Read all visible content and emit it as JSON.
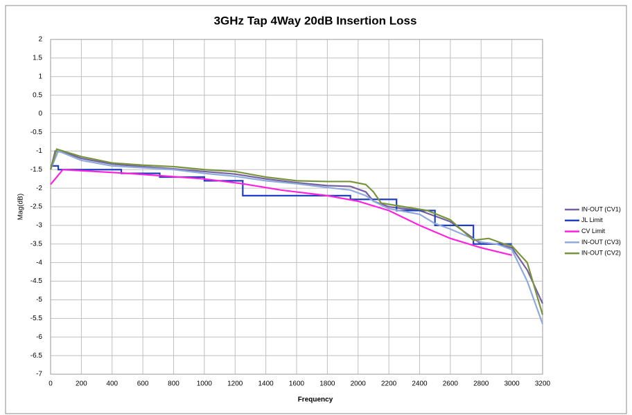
{
  "chart_data": {
    "type": "line",
    "title": "3GHz Tap 4Way 20dB Insertion Loss",
    "x_label": "Frequency",
    "y_label": "Mag(dB)",
    "xlim": [
      0,
      3200
    ],
    "xticks": [
      0,
      200,
      400,
      600,
      800,
      1000,
      1200,
      1400,
      1600,
      1800,
      2000,
      2200,
      2400,
      2600,
      2800,
      3000,
      3200
    ],
    "ylim": [
      -7,
      2
    ],
    "yticks": [
      2,
      1.5,
      1,
      0.5,
      0,
      -0.5,
      -1,
      -1.5,
      -2,
      -2.5,
      -3,
      -3.5,
      -4,
      -4.5,
      -5,
      -5.5,
      -6,
      -6.5,
      -7
    ],
    "grid": true,
    "legend": "right",
    "series": [
      {
        "name": "IN-OUT (CV1)",
        "color": "#7460a0",
        "x": [
          0,
          30,
          100,
          200,
          400,
          600,
          800,
          1000,
          1200,
          1400,
          1600,
          1800,
          1950,
          2050,
          2100,
          2200,
          2400,
          2600,
          2700,
          2800,
          2900,
          3000,
          3100,
          3200
        ],
        "values": [
          -1.5,
          -1.0,
          -1.05,
          -1.2,
          -1.35,
          -1.42,
          -1.48,
          -1.55,
          -1.62,
          -1.75,
          -1.85,
          -1.93,
          -1.95,
          -2.1,
          -2.35,
          -2.5,
          -2.6,
          -2.9,
          -3.2,
          -3.5,
          -3.5,
          -3.6,
          -4.2,
          -5.1
        ]
      },
      {
        "name": "JL Limit",
        "color": "#1f3fc0",
        "x": [
          0,
          50,
          50,
          460,
          460,
          710,
          710,
          1000,
          1000,
          1250,
          1250,
          1950,
          1950,
          2250,
          2250,
          2500,
          2500,
          2750,
          2750,
          3000
        ],
        "values": [
          -1.4,
          -1.4,
          -1.5,
          -1.5,
          -1.6,
          -1.6,
          -1.7,
          -1.7,
          -1.8,
          -1.8,
          -2.2,
          -2.2,
          -2.3,
          -2.3,
          -2.6,
          -2.6,
          -3.0,
          -3.0,
          -3.5,
          -3.5
        ]
      },
      {
        "name": "CV Limit",
        "color": "#ff20e0",
        "x": [
          0,
          80,
          500,
          1000,
          1250,
          1500,
          1800,
          2000,
          2200,
          2400,
          2600,
          2800,
          3000
        ],
        "values": [
          -1.9,
          -1.5,
          -1.6,
          -1.75,
          -1.88,
          -2.05,
          -2.2,
          -2.35,
          -2.6,
          -3.0,
          -3.35,
          -3.6,
          -3.8
        ]
      },
      {
        "name": "IN-OUT (CV3)",
        "color": "#8eaadb",
        "x": [
          0,
          50,
          200,
          400,
          600,
          800,
          1000,
          1200,
          1400,
          1600,
          1800,
          1950,
          2050,
          2100,
          2200,
          2400,
          2500,
          2600,
          2800,
          2900,
          3000,
          3100,
          3200
        ],
        "values": [
          -1.5,
          -1.0,
          -1.25,
          -1.4,
          -1.45,
          -1.5,
          -1.6,
          -1.68,
          -1.8,
          -1.88,
          -1.98,
          -2.05,
          -2.2,
          -2.35,
          -2.55,
          -2.7,
          -2.95,
          -3.1,
          -3.45,
          -3.5,
          -3.65,
          -4.5,
          -5.65
        ]
      },
      {
        "name": "IN-OUT (CV2)",
        "color": "#77933c",
        "x": [
          0,
          40,
          200,
          400,
          600,
          800,
          1000,
          1200,
          1400,
          1600,
          1800,
          1950,
          2050,
          2100,
          2150,
          2300,
          2450,
          2600,
          2750,
          2850,
          2950,
          3000,
          3100,
          3200
        ],
        "values": [
          -1.5,
          -0.95,
          -1.15,
          -1.32,
          -1.38,
          -1.42,
          -1.5,
          -1.55,
          -1.7,
          -1.8,
          -1.82,
          -1.82,
          -1.9,
          -2.1,
          -2.4,
          -2.5,
          -2.6,
          -2.85,
          -3.4,
          -3.35,
          -3.5,
          -3.55,
          -4.0,
          -5.4
        ]
      }
    ]
  }
}
